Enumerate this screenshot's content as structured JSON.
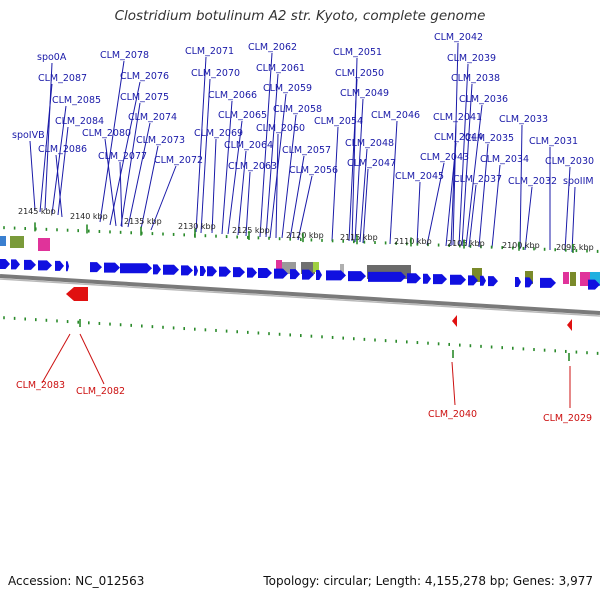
{
  "title": "Clostridium botulinum A2 str. Kyoto, complete genome",
  "footer": {
    "accession": "Accession: NC_012563",
    "summary": "Topology: circular; Length: 4,155,278 bp; Genes: 3,977"
  },
  "colors": {
    "label_forward": "#1a1aa8",
    "label_reverse": "#cc1111",
    "gene_forward": "#1010e0",
    "gene_reverse": "#e01010",
    "tick": "#2a8a2a",
    "backbone": "#808080"
  },
  "kbp_labels": [
    "2145 kbp",
    "2140 kbp",
    "2135 kbp",
    "2130 kbp",
    "2125 kbp",
    "2120 kbp",
    "2115 kbp",
    "2110 kbp",
    "2105 kbp",
    "2100 kbp",
    "2095 kbp"
  ],
  "forward_labels": [
    "spo0A",
    "CLM_2087",
    "CLM_2085",
    "CLM_2084",
    "spoIVB",
    "CLM_2086",
    "CLM_2078",
    "CLM_2076",
    "CLM_2075",
    "CLM_2074",
    "CLM_2080",
    "CLM_2077",
    "CLM_2073",
    "CLM_2072",
    "CLM_2071",
    "CLM_2070",
    "CLM_2069",
    "CLM_2066",
    "CLM_2065",
    "CLM_2064",
    "CLM_2063",
    "CLM_2062",
    "CLM_2061",
    "CLM_2059",
    "CLM_2058",
    "CLM_2060",
    "CLM_2057",
    "CLM_2056",
    "CLM_2051",
    "CLM_2050",
    "CLM_2049",
    "CLM_2054",
    "CLM_2048",
    "CLM_2047",
    "CLM_2046",
    "CLM_2042",
    "CLM_2039",
    "CLM_2038",
    "CLM_2036",
    "CLM_2041",
    "CLM_2044",
    "CLM_2043",
    "CLM_2045",
    "CLM_2035",
    "CLM_2037",
    "CLM_2034",
    "CLM_2033",
    "CLM_2031",
    "CLM_2032",
    "CLM_2030",
    "spoIIM"
  ],
  "reverse_labels": [
    "CLM_2083",
    "CLM_2082",
    "CLM_2040",
    "CLM_2029"
  ]
}
